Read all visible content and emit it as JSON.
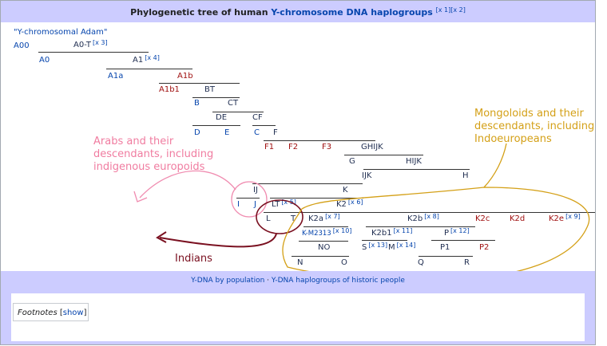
{
  "header": {
    "prefix": "Phylogenetic tree of human",
    "link": "Y-chromosome DNA haplogroups",
    "refs": [
      "[x 1]",
      "[x 2]"
    ]
  },
  "root": "\"Y-chromosomal Adam\"",
  "nodes": [
    {
      "label": "A00"
    },
    {
      "label": "A0-T",
      "ref": "[x 3]"
    },
    {
      "label": "A0"
    },
    {
      "label": "A1",
      "ref": "[x 4]"
    },
    {
      "label": "A1a"
    },
    {
      "label": "A1b"
    },
    {
      "label": "A1b1"
    },
    {
      "label": "BT"
    },
    {
      "label": "B"
    },
    {
      "label": "CT"
    },
    {
      "label": "DE"
    },
    {
      "label": "CF"
    },
    {
      "label": "D"
    },
    {
      "label": "E"
    },
    {
      "label": "C"
    },
    {
      "label": "F"
    },
    {
      "label": "F1"
    },
    {
      "label": "F2"
    },
    {
      "label": "F3"
    },
    {
      "label": "GHIJK"
    },
    {
      "label": "G"
    },
    {
      "label": "HIJK"
    },
    {
      "label": "IJK"
    },
    {
      "label": "H"
    },
    {
      "label": "IJ"
    },
    {
      "label": "K"
    },
    {
      "label": "I"
    },
    {
      "label": "J"
    },
    {
      "label": "LT",
      "ref": "[x 5]"
    },
    {
      "label": "K2",
      "ref": "[x 6]"
    },
    {
      "label": "L"
    },
    {
      "label": "T"
    },
    {
      "label": "K2a",
      "ref": "[x 7]"
    },
    {
      "label": "K2b",
      "ref": "[x 8]"
    },
    {
      "label": "K2c"
    },
    {
      "label": "K2d"
    },
    {
      "label": "K2e",
      "ref": "[x 9]"
    },
    {
      "label": "K-M2313",
      "ref": "[x 10]"
    },
    {
      "label": "K2b1",
      "ref": "[x 11]"
    },
    {
      "label": "P",
      "ref": "[x 12]"
    },
    {
      "label": "NO"
    },
    {
      "label": "S",
      "ref": "[x 13]"
    },
    {
      "label": "M",
      "ref": "[x 14]"
    },
    {
      "label": "P1"
    },
    {
      "label": "P2"
    },
    {
      "label": "N"
    },
    {
      "label": "O"
    },
    {
      "label": "Q"
    },
    {
      "label": "R"
    }
  ],
  "annotations": {
    "europoids": [
      "Arabs and their",
      "descendants, including",
      "indigenous europoids"
    ],
    "mongoloids": [
      "Mongoloids and their",
      "descendants, including",
      "Indoeuropeans"
    ],
    "indians": "Indians"
  },
  "footer": {
    "links": [
      "Y-DNA by population",
      "Y-DNA haplogroups of historic people"
    ],
    "separator": "·"
  },
  "footnotes": {
    "label": "Footnotes",
    "open": "[",
    "toggle": "show",
    "close": "]"
  }
}
